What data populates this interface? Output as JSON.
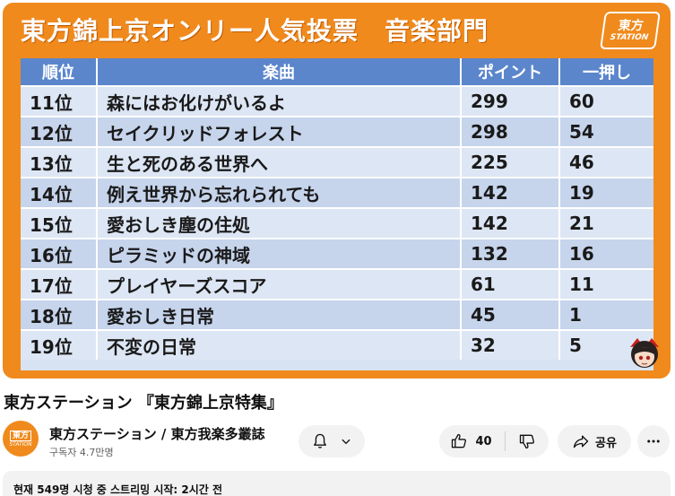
{
  "video": {
    "heading": "東方錦上京オンリー人気投票　音楽部門",
    "logo": {
      "line1": "東方",
      "line2": "STATION"
    },
    "table": {
      "headers": [
        "順位",
        "楽曲",
        "ポイント",
        "一押し"
      ],
      "rows": [
        {
          "rank": "11位",
          "song": "森にはお化けがいるよ",
          "points": "299",
          "push": "60"
        },
        {
          "rank": "12位",
          "song": "セイクリッドフォレスト",
          "points": "298",
          "push": "54"
        },
        {
          "rank": "13位",
          "song": "生と死のある世界へ",
          "points": "225",
          "push": "46"
        },
        {
          "rank": "14位",
          "song": "例え世界から忘れられても",
          "points": "142",
          "push": "19"
        },
        {
          "rank": "15位",
          "song": "愛おしき塵の住処",
          "points": "142",
          "push": "21"
        },
        {
          "rank": "16位",
          "song": "ピラミッドの神域",
          "points": "132",
          "push": "16"
        },
        {
          "rank": "17位",
          "song": "プレイヤーズスコア",
          "points": "61",
          "push": "11"
        },
        {
          "rank": "18位",
          "song": "愛おしき日常",
          "points": "45",
          "push": "1"
        },
        {
          "rank": "19位",
          "song": "不変の日常",
          "points": "32",
          "push": "5"
        }
      ]
    }
  },
  "watch": {
    "title": "東方ステーション 『東方錦上京特集』",
    "channel": {
      "name": "東方ステーション / 東方我楽多叢誌",
      "subscribers": "구독자 4.7만명",
      "avatar": {
        "line1": "東方",
        "line2": "STATION"
      }
    },
    "actions": {
      "like_count": "40",
      "share_label": "공유"
    },
    "description": {
      "meta": "현재 549명 시청 중  스트리밍 시작: 2시간 전"
    }
  },
  "colors": {
    "frame_orange": "#f08a1c",
    "header_blue": "#5b86cc",
    "row_light": "#dde6f4",
    "row_dark": "#c6d4ec"
  },
  "icons": [
    "bell-icon",
    "chevron-down-icon",
    "thumbs-up-icon",
    "thumbs-down-icon",
    "share-icon",
    "more-icon",
    "mascot-icon"
  ]
}
